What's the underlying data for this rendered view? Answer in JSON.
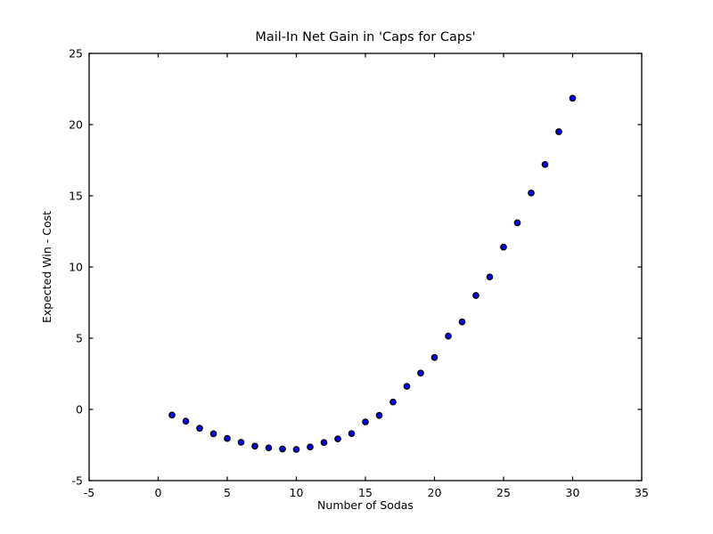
{
  "figure": {
    "background": "#ffffff"
  },
  "chart_data": {
    "type": "scatter",
    "title": "Mail-In Net Gain in 'Caps for Caps'",
    "xlabel": "Number of Sodas",
    "ylabel": "Expected Win - Cost",
    "xlim": [
      -5,
      35
    ],
    "ylim": [
      -5,
      25
    ],
    "xticks": [
      -5,
      0,
      5,
      10,
      15,
      20,
      25,
      30,
      35
    ],
    "yticks": [
      -5,
      0,
      5,
      10,
      15,
      20,
      25
    ],
    "grid": false,
    "legend": "none",
    "frame_color": "#000000",
    "marker": {
      "shape": "circle",
      "fill_color": "#0000F0",
      "edge_color": "#000000"
    },
    "x": [
      1,
      2,
      3,
      4,
      5,
      6,
      7,
      8,
      9,
      10,
      11,
      12,
      13,
      14,
      15,
      16,
      17,
      18,
      19,
      20,
      21,
      22,
      23,
      24,
      25,
      26,
      27,
      28,
      29,
      30
    ],
    "y": [
      -0.4,
      -0.83,
      -1.33,
      -1.71,
      -2.04,
      -2.31,
      -2.58,
      -2.7,
      -2.78,
      -2.81,
      -2.64,
      -2.33,
      -2.07,
      -1.7,
      -0.88,
      -0.42,
      0.52,
      1.62,
      2.55,
      3.65,
      5.15,
      6.15,
      8.0,
      9.3,
      11.4,
      13.1,
      15.2,
      17.2,
      19.5,
      21.85
    ]
  }
}
